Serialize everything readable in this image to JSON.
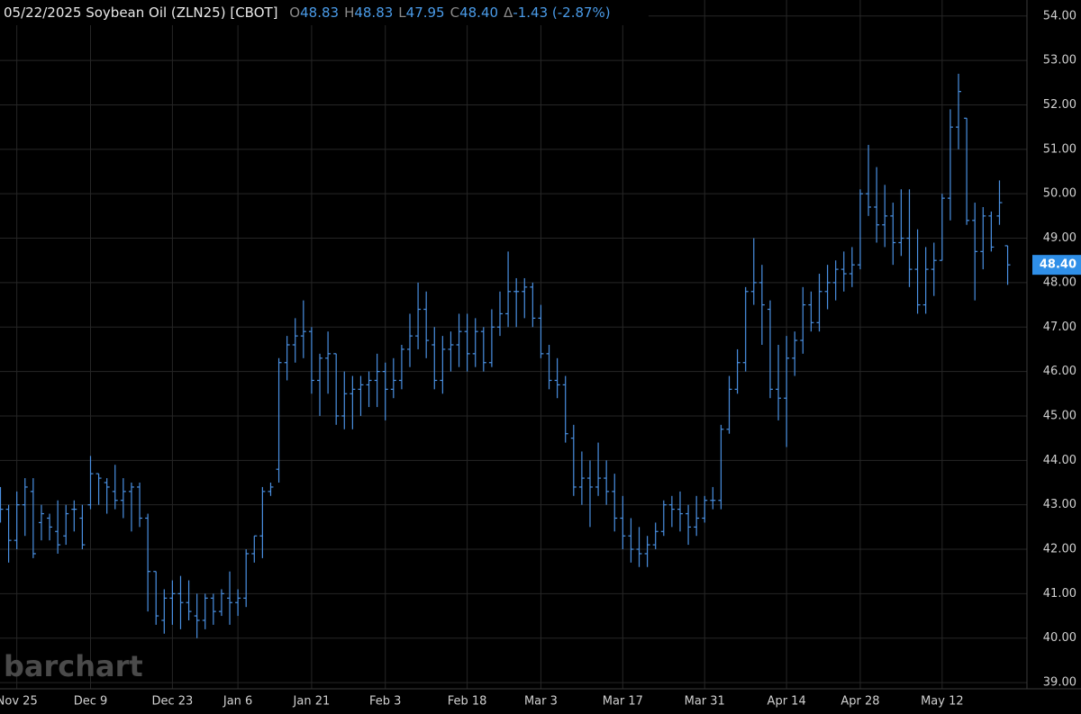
{
  "chart_data": {
    "type": "ohlc",
    "title": "05/22/2025 Soybean Oil (ZLN25) [CBOT]",
    "readout": [
      {
        "label": "O",
        "value": "48.83"
      },
      {
        "label": "H",
        "value": "48.83"
      },
      {
        "label": "L",
        "value": "47.95"
      },
      {
        "label": "C",
        "value": "48.40"
      },
      {
        "label": "Δ",
        "value": "-1.43 (-2.87%)"
      }
    ],
    "watermark": "barchart",
    "categories": [
      null,
      null,
      "Nov 25",
      null,
      null,
      null,
      null,
      null,
      null,
      null,
      null,
      "Dec 9",
      null,
      null,
      null,
      null,
      null,
      null,
      null,
      null,
      null,
      "Dec 23",
      null,
      null,
      null,
      null,
      null,
      null,
      null,
      "Jan 6",
      null,
      null,
      null,
      null,
      null,
      null,
      null,
      null,
      "Jan 21",
      null,
      null,
      null,
      null,
      null,
      null,
      null,
      null,
      "Feb 3",
      null,
      null,
      null,
      null,
      null,
      null,
      null,
      null,
      null,
      "Feb 18",
      null,
      null,
      null,
      null,
      null,
      null,
      null,
      null,
      "Mar 3",
      null,
      null,
      null,
      null,
      null,
      null,
      null,
      null,
      null,
      "Mar 17",
      null,
      null,
      null,
      null,
      null,
      null,
      null,
      null,
      null,
      "Mar 31",
      null,
      null,
      null,
      null,
      null,
      null,
      null,
      null,
      null,
      "Apr 14",
      null,
      null,
      null,
      null,
      null,
      null,
      null,
      null,
      "Apr 28",
      null,
      null,
      null,
      null,
      null,
      null,
      null,
      null,
      null,
      "May 12",
      null,
      null,
      null,
      null,
      null,
      null,
      null,
      null
    ],
    "series": [
      {
        "color": "#4a90e2",
        "open": [
          43.0,
          42.9,
          42.2,
          43.0,
          43.3,
          42.6,
          42.7,
          42.4,
          42.3,
          42.9,
          42.7,
          43.0,
          43.7,
          43.5,
          43.3,
          43.1,
          43.3,
          43.4,
          42.7,
          41.5,
          40.4,
          40.9,
          41.0,
          40.8,
          40.5,
          40.4,
          40.9,
          40.6,
          40.9,
          40.8,
          40.9,
          41.9,
          42.3,
          43.3,
          43.8,
          46.2,
          46.6,
          46.8,
          46.9,
          45.8,
          46.3,
          46.4,
          45.0,
          45.5,
          45.6,
          45.7,
          45.8,
          46.0,
          45.6,
          45.8,
          46.5,
          46.8,
          47.4,
          46.6,
          45.8,
          46.5,
          46.6,
          46.9,
          46.4,
          46.9,
          46.2,
          47.0,
          47.3,
          47.8,
          47.8,
          47.9,
          47.2,
          46.4,
          45.8,
          45.7,
          44.5,
          43.4,
          43.6,
          43.4,
          43.6,
          43.3,
          42.7,
          42.3,
          42.0,
          41.9,
          42.1,
          42.4,
          43.0,
          42.9,
          42.8,
          42.5,
          42.7,
          43.1,
          43.1,
          44.7,
          45.6,
          46.2,
          47.8,
          48.0,
          47.4,
          45.6,
          45.4,
          46.3,
          46.7,
          47.5,
          47.1,
          47.8,
          48.0,
          48.3,
          48.2,
          48.4,
          50.0,
          49.7,
          49.3,
          49.5,
          48.9,
          49.0,
          48.3,
          47.5,
          48.3,
          48.5,
          49.9,
          51.5,
          51.7,
          49.4,
          48.7,
          49.5,
          49.5,
          48.83
        ],
        "high": [
          43.4,
          43.0,
          43.3,
          43.6,
          43.6,
          43.0,
          42.8,
          43.1,
          43.0,
          43.1,
          43.0,
          44.1,
          43.7,
          43.6,
          43.9,
          43.6,
          43.5,
          43.5,
          42.8,
          41.5,
          41.1,
          41.3,
          41.4,
          41.3,
          41.0,
          41.0,
          41.0,
          41.1,
          41.5,
          41.1,
          42.0,
          42.3,
          43.4,
          43.5,
          46.3,
          46.8,
          47.2,
          47.6,
          47.0,
          46.4,
          46.9,
          46.4,
          46.0,
          45.9,
          45.9,
          46.0,
          46.4,
          46.2,
          46.3,
          46.6,
          47.3,
          48.0,
          47.8,
          47.0,
          46.8,
          46.9,
          47.3,
          47.3,
          47.2,
          47.0,
          47.4,
          47.8,
          48.7,
          48.1,
          48.1,
          48.0,
          47.5,
          46.6,
          46.3,
          45.9,
          44.8,
          44.2,
          44.0,
          44.4,
          44.0,
          43.7,
          43.2,
          42.7,
          42.5,
          42.3,
          42.6,
          43.1,
          43.2,
          43.3,
          43.0,
          43.2,
          43.2,
          43.4,
          44.8,
          45.9,
          46.5,
          47.9,
          49.0,
          48.4,
          47.6,
          46.6,
          46.8,
          46.9,
          47.9,
          47.8,
          48.2,
          48.4,
          48.5,
          48.7,
          48.8,
          50.1,
          51.1,
          50.6,
          50.2,
          49.8,
          50.1,
          50.1,
          49.2,
          48.8,
          48.9,
          50.0,
          51.9,
          52.7,
          51.7,
          49.8,
          49.7,
          49.6,
          50.3,
          48.83
        ],
        "low": [
          42.6,
          41.7,
          42.0,
          42.3,
          41.8,
          42.2,
          42.2,
          41.9,
          42.1,
          42.4,
          42.0,
          42.9,
          43.0,
          42.8,
          42.9,
          42.7,
          42.4,
          42.5,
          40.6,
          40.3,
          40.1,
          40.3,
          40.2,
          40.4,
          40.0,
          40.2,
          40.3,
          40.5,
          40.3,
          40.5,
          40.7,
          41.7,
          41.8,
          43.2,
          43.5,
          45.8,
          46.2,
          46.3,
          45.5,
          45.0,
          45.5,
          44.8,
          44.7,
          44.7,
          45.0,
          45.2,
          45.2,
          44.9,
          45.4,
          45.6,
          46.1,
          46.5,
          46.3,
          45.6,
          45.5,
          46.0,
          46.1,
          46.0,
          46.1,
          46.0,
          46.1,
          46.8,
          47.0,
          47.0,
          47.2,
          47.0,
          46.3,
          45.6,
          45.4,
          44.4,
          43.2,
          43.0,
          42.5,
          43.2,
          43.0,
          42.4,
          42.0,
          41.7,
          41.6,
          41.6,
          42.0,
          42.3,
          42.5,
          42.4,
          42.1,
          42.3,
          42.6,
          42.9,
          42.9,
          44.6,
          45.5,
          46.0,
          47.5,
          46.6,
          45.4,
          44.9,
          44.3,
          45.9,
          46.4,
          46.9,
          46.9,
          47.4,
          47.6,
          47.8,
          47.9,
          48.3,
          49.5,
          48.9,
          48.8,
          48.4,
          48.6,
          47.9,
          47.3,
          47.3,
          47.7,
          48.5,
          49.4,
          51.0,
          49.3,
          47.6,
          48.3,
          48.7,
          49.3,
          47.95
        ],
        "close": [
          42.9,
          42.2,
          43.0,
          43.4,
          41.9,
          42.8,
          42.5,
          42.1,
          42.8,
          42.9,
          42.1,
          43.7,
          43.6,
          43.4,
          43.1,
          43.3,
          43.4,
          42.7,
          41.5,
          40.5,
          40.9,
          41.0,
          40.8,
          40.6,
          40.4,
          40.9,
          40.6,
          41.0,
          40.8,
          40.9,
          41.9,
          42.3,
          43.3,
          43.4,
          46.2,
          46.6,
          46.8,
          46.9,
          45.8,
          46.3,
          46.4,
          45.0,
          45.5,
          45.6,
          45.7,
          45.8,
          46.0,
          45.6,
          45.8,
          46.5,
          46.8,
          47.4,
          46.7,
          45.8,
          46.5,
          46.6,
          46.9,
          46.4,
          46.9,
          46.2,
          47.0,
          47.3,
          47.8,
          47.8,
          47.9,
          47.2,
          46.4,
          45.8,
          45.7,
          44.6,
          43.4,
          43.6,
          43.4,
          43.6,
          43.3,
          42.7,
          42.3,
          42.0,
          41.9,
          42.1,
          42.4,
          43.0,
          42.9,
          42.8,
          42.5,
          42.7,
          43.1,
          43.1,
          44.7,
          45.6,
          46.2,
          47.8,
          48.0,
          47.5,
          45.6,
          45.4,
          46.3,
          46.7,
          47.5,
          47.1,
          47.8,
          48.0,
          48.3,
          48.2,
          48.4,
          50.0,
          49.7,
          49.3,
          49.5,
          48.9,
          49.0,
          48.3,
          47.5,
          48.3,
          48.5,
          49.9,
          51.5,
          52.3,
          49.4,
          48.7,
          49.5,
          48.8,
          49.8,
          48.4
        ]
      }
    ],
    "last_price": {
      "value": 48.4,
      "label": "48.40"
    },
    "ylim": [
      38.86,
      54.36
    ],
    "yticks": [
      {
        "value": 39,
        "label": "39.00"
      },
      {
        "value": 40,
        "label": "40.00"
      },
      {
        "value": 41,
        "label": "41.00"
      },
      {
        "value": 42,
        "label": "42.00"
      },
      {
        "value": 43,
        "label": "43.00"
      },
      {
        "value": 44,
        "label": "44.00"
      },
      {
        "value": 45,
        "label": "45.00"
      },
      {
        "value": 46,
        "label": "46.00"
      },
      {
        "value": 47,
        "label": "47.00"
      },
      {
        "value": 48,
        "label": "48.00"
      },
      {
        "value": 49,
        "label": "49.00"
      },
      {
        "value": 50,
        "label": "50.00"
      },
      {
        "value": 51,
        "label": "51.00"
      },
      {
        "value": 52,
        "label": "52.00"
      },
      {
        "value": 53,
        "label": "53.00"
      },
      {
        "value": 54,
        "label": "54.00"
      }
    ],
    "grid": true
  }
}
